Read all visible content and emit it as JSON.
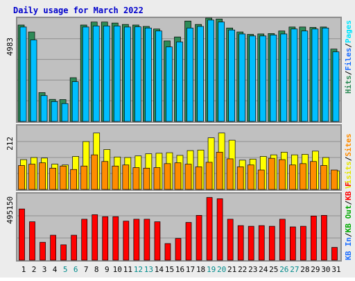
{
  "title": "Daily usage for March 2022",
  "colors": {
    "frame_bg": "#ececec",
    "plot_bg": "#c0c0c0",
    "title": "#0000cc",
    "hits": "#2e8b57",
    "files": "#00bfff",
    "pages": "#00e5ff",
    "visits": "#ffff00",
    "sites": "#ff8c00",
    "kbf": "#ff0000",
    "kbin": "#1e6fff",
    "kbout": "#00aa00",
    "weekend_label": "#008b8b",
    "day_label": "#000000"
  },
  "legends": {
    "top": [
      {
        "text": "Hits",
        "color": "#2e8b57"
      },
      {
        "text": "/",
        "color": "#000000"
      },
      {
        "text": "Files",
        "color": "#1e6fff"
      },
      {
        "text": "/",
        "color": "#000000"
      },
      {
        "text": "Pages",
        "color": "#00e5ff"
      }
    ],
    "mid": [
      {
        "text": "Visits",
        "color": "#e6e600"
      },
      {
        "text": "/",
        "color": "#000000"
      },
      {
        "text": "Sites",
        "color": "#ff8c00"
      }
    ],
    "bot": [
      {
        "text": "KB In",
        "color": "#1e6fff"
      },
      {
        "text": "/",
        "color": "#000000"
      },
      {
        "text": "KB Out",
        "color": "#00aa00"
      },
      {
        "text": "/",
        "color": "#000000"
      },
      {
        "text": "KB F",
        "color": "#ff0000"
      }
    ]
  },
  "chart_data": [
    {
      "type": "bar",
      "panel": "hits-files-pages",
      "y_axis_label": "4983",
      "ylim": [
        0,
        5200
      ],
      "categories": [
        "1",
        "2",
        "3",
        "4",
        "5",
        "6",
        "7",
        "8",
        "9",
        "10",
        "11",
        "12",
        "13",
        "14",
        "15",
        "16",
        "17",
        "18",
        "19",
        "20",
        "21",
        "22",
        "23",
        "24",
        "25",
        "26",
        "27",
        "28",
        "29",
        "30",
        "31"
      ],
      "series": [
        {
          "name": "Hits",
          "values": [
            4850,
            4500,
            1450,
            1110,
            1100,
            2200,
            4850,
            5000,
            5000,
            4950,
            4880,
            4850,
            4780,
            4650,
            4050,
            4250,
            5050,
            4880,
            5200,
            5150,
            4700,
            4500,
            4380,
            4400,
            4420,
            4550,
            4750,
            4750,
            4730,
            4750,
            3640
          ]
        },
        {
          "name": "Files",
          "values": [
            4750,
            4100,
            1300,
            1000,
            900,
            2000,
            4750,
            4800,
            4800,
            4800,
            4750,
            4760,
            4700,
            4550,
            3750,
            4000,
            4700,
            4780,
            5100,
            5000,
            4600,
            4400,
            4300,
            4300,
            4350,
            4400,
            4650,
            4550,
            4650,
            4700,
            3500
          ]
        }
      ]
    },
    {
      "type": "bar",
      "panel": "visits-sites",
      "y_axis_label": "212",
      "ylim": [
        0,
        240
      ],
      "categories": [
        "1",
        "2",
        "3",
        "4",
        "5",
        "6",
        "7",
        "8",
        "9",
        "10",
        "11",
        "12",
        "13",
        "14",
        "15",
        "16",
        "17",
        "18",
        "19",
        "20",
        "21",
        "22",
        "23",
        "24",
        "25",
        "26",
        "27",
        "28",
        "29",
        "30",
        "31"
      ],
      "series": [
        {
          "name": "Visits",
          "values": [
            112,
            120,
            118,
            95,
            92,
            124,
            180,
            212,
            150,
            122,
            120,
            126,
            134,
            136,
            138,
            128,
            146,
            148,
            194,
            212,
            185,
            110,
            114,
            124,
            130,
            140,
            130,
            132,
            144,
            120,
            70
          ]
        },
        {
          "name": "Sites",
          "values": [
            90,
            95,
            100,
            80,
            88,
            75,
            88,
            130,
            105,
            88,
            92,
            82,
            80,
            82,
            97,
            100,
            95,
            85,
            102,
            140,
            115,
            85,
            92,
            73,
            117,
            112,
            92,
            97,
            105,
            90,
            73
          ]
        }
      ]
    },
    {
      "type": "bar",
      "panel": "kbf",
      "y_axis_label": "495150",
      "ylim": [
        0,
        520000
      ],
      "categories": [
        "1",
        "2",
        "3",
        "4",
        "5",
        "6",
        "7",
        "8",
        "9",
        "10",
        "11",
        "12",
        "13",
        "14",
        "15",
        "16",
        "17",
        "18",
        "19",
        "20",
        "21",
        "22",
        "23",
        "24",
        "25",
        "26",
        "27",
        "28",
        "29",
        "30",
        "31"
      ],
      "series": [
        {
          "name": "KB F",
          "values": [
            400000,
            300000,
            140000,
            195000,
            120000,
            195000,
            320000,
            355000,
            340000,
            340000,
            305000,
            320000,
            320000,
            300000,
            130000,
            170000,
            295000,
            350000,
            490000,
            480000,
            320000,
            270000,
            265000,
            270000,
            265000,
            320000,
            260000,
            265000,
            345000,
            350000,
            100000
          ]
        }
      ]
    }
  ],
  "weekend_days": [
    5,
    6,
    12,
    13,
    19,
    20,
    26,
    27
  ]
}
